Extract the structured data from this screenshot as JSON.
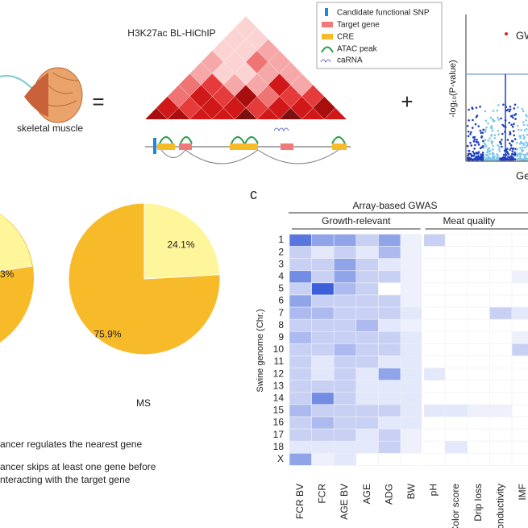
{
  "figure": {
    "top": {
      "muscle_label": "skeletal muscle",
      "equals": "=",
      "hichip_title": "H3K27ac BL-HiChIP",
      "legend": [
        "Candidate functional SNP",
        "Target gene",
        "CRE",
        "ATAC peak",
        "caRNA"
      ],
      "plus": "+",
      "manhattan": {
        "y_label": "-log₁₀(P-value)",
        "top_label": "GW",
        "bottom_label": "Ge"
      }
    },
    "panel_label": "c",
    "pies": {
      "left_label": "3%",
      "right": {
        "name": "MS",
        "values": [
          24.1,
          75.9
        ],
        "value_labels": [
          "24.1%",
          "75.9%"
        ],
        "colors": [
          "#fff59a",
          "#f7bb2a"
        ]
      }
    },
    "legend_text": [
      "ancer regulates the nearest gene",
      "ancer skips at least one gene before",
      "nteracting with the target gene"
    ],
    "heatmap": {
      "title": "Array-based GWAS",
      "y_label": "Swine genome (Chr.)",
      "color": "#3d5fd9",
      "groups": [
        {
          "name": "Growth-relevant",
          "columns": [
            "FCR BV",
            "FCR",
            "AGE BV",
            "AGE",
            "ADG",
            "BW"
          ]
        },
        {
          "name": "Meat quality",
          "columns": [
            "pH",
            "Color score",
            "Drip loss",
            "Conductivity",
            "IMF"
          ]
        }
      ],
      "rows": [
        "1",
        "2",
        "3",
        "4",
        "5",
        "6",
        "7",
        "8",
        "9",
        "10",
        "11",
        "12",
        "13",
        "14",
        "15",
        "16",
        "17",
        "18",
        "X"
      ],
      "values": [
        [
          3,
          2,
          2,
          1,
          2,
          0.3,
          1,
          0,
          0,
          0,
          0
        ],
        [
          1,
          0.5,
          1,
          0.5,
          1.5,
          0.3,
          0,
          0,
          0,
          0,
          0
        ],
        [
          1,
          1,
          2,
          1,
          0.5,
          0.3,
          0,
          0,
          0,
          0,
          0
        ],
        [
          2.5,
          1,
          2,
          1,
          1,
          0.3,
          0,
          0,
          0,
          0,
          0.3
        ],
        [
          1,
          3.5,
          1.5,
          1,
          0,
          0.3,
          0,
          0,
          0,
          0,
          0
        ],
        [
          2,
          1,
          1,
          1,
          1,
          0.3,
          0,
          0,
          0,
          0,
          0
        ],
        [
          1.5,
          1.5,
          1,
          1,
          1,
          0.5,
          0,
          0,
          0,
          1,
          0.5
        ],
        [
          1,
          1,
          1,
          1.5,
          0.5,
          0.3,
          0,
          0,
          0,
          0,
          0
        ],
        [
          1.5,
          1,
          1,
          1,
          1,
          0.5,
          0,
          0,
          0,
          0,
          0.3
        ],
        [
          1,
          1,
          1.5,
          1,
          1,
          0.5,
          0,
          0,
          0,
          0,
          1
        ],
        [
          1,
          0.5,
          1,
          1,
          0.5,
          0.5,
          0,
          0,
          0,
          0,
          0
        ],
        [
          1,
          0.5,
          1,
          0.5,
          2,
          0.5,
          0.5,
          0,
          0,
          0,
          0
        ],
        [
          1,
          1,
          1,
          0.5,
          0.5,
          0.5,
          0,
          0,
          0,
          0,
          0
        ],
        [
          1,
          2.5,
          1,
          0.5,
          0.5,
          0.5,
          0,
          0,
          0,
          0,
          0
        ],
        [
          1.5,
          1,
          1,
          1,
          1,
          0.5,
          0.5,
          0.5,
          0.3,
          0.3,
          0
        ],
        [
          1,
          1.5,
          1,
          1,
          0.5,
          0.5,
          0,
          0,
          0,
          0,
          0
        ],
        [
          1,
          1,
          1,
          0.5,
          1,
          0.3,
          0,
          0,
          0,
          0,
          0
        ],
        [
          0.5,
          0.5,
          0.5,
          0.5,
          1,
          0.3,
          0,
          0.5,
          0,
          0,
          0
        ],
        [
          2,
          0.3,
          0.5,
          0,
          0,
          0,
          0,
          0,
          0,
          0,
          0
        ]
      ]
    }
  }
}
